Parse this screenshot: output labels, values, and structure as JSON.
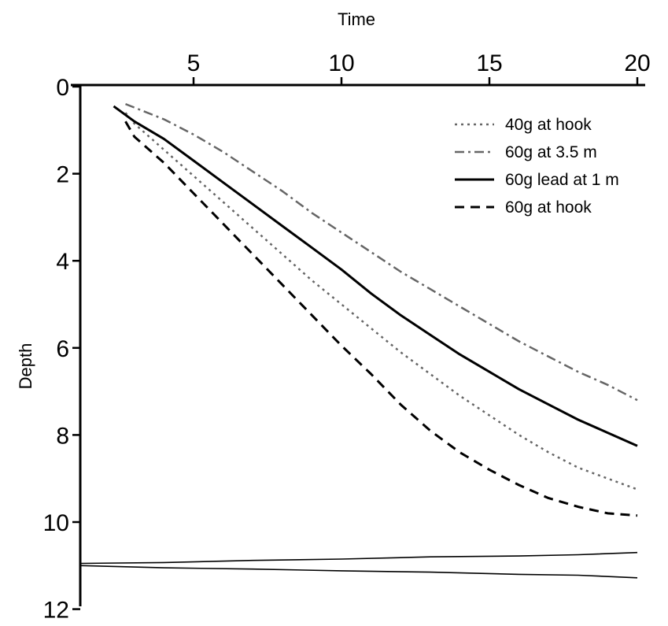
{
  "chart_data": {
    "type": "line",
    "xlabel": "Time",
    "ylabel": "Depth",
    "xlim": [
      0,
      20.3
    ],
    "ylim": [
      0,
      12
    ],
    "x_axis_position": "top",
    "y_axis_inverted": true,
    "grid": false,
    "legend_position": "top-right",
    "x_ticks": [
      {
        "value": 5,
        "label": "5"
      },
      {
        "value": 10,
        "label": "10"
      },
      {
        "value": 15,
        "label": "15"
      },
      {
        "value": 20,
        "label": "20"
      }
    ],
    "y_ticks": [
      {
        "value": 0,
        "label": "0"
      },
      {
        "value": 2,
        "label": "2"
      },
      {
        "value": 4,
        "label": "4"
      },
      {
        "value": 6,
        "label": "6"
      },
      {
        "value": 8,
        "label": "8"
      },
      {
        "value": 10,
        "label": "10"
      },
      {
        "value": 12,
        "label": "12"
      }
    ],
    "series": [
      {
        "name": "40g at hook",
        "style": "dotted",
        "color": "#666666",
        "points": [
          [
            2.7,
            0.6
          ],
          [
            3,
            0.85
          ],
          [
            4,
            1.45
          ],
          [
            5,
            2.05
          ],
          [
            6,
            2.65
          ],
          [
            7,
            3.25
          ],
          [
            8,
            3.85
          ],
          [
            9,
            4.45
          ],
          [
            10,
            5.0
          ],
          [
            11,
            5.55
          ],
          [
            12,
            6.1
          ],
          [
            13,
            6.6
          ],
          [
            14,
            7.1
          ],
          [
            15,
            7.55
          ],
          [
            16,
            8.0
          ],
          [
            17,
            8.4
          ],
          [
            18,
            8.75
          ],
          [
            19,
            9.0
          ],
          [
            20,
            9.25
          ]
        ]
      },
      {
        "name": "60g at 3.5 m",
        "style": "dashdot",
        "color": "#666666",
        "points": [
          [
            2.7,
            0.4
          ],
          [
            4,
            0.75
          ],
          [
            5,
            1.1
          ],
          [
            6,
            1.5
          ],
          [
            7,
            1.95
          ],
          [
            8,
            2.4
          ],
          [
            9,
            2.9
          ],
          [
            10,
            3.35
          ],
          [
            11,
            3.8
          ],
          [
            12,
            4.25
          ],
          [
            13,
            4.65
          ],
          [
            14,
            5.05
          ],
          [
            15,
            5.45
          ],
          [
            16,
            5.85
          ],
          [
            17,
            6.2
          ],
          [
            18,
            6.55
          ],
          [
            19,
            6.85
          ],
          [
            20,
            7.2
          ]
        ]
      },
      {
        "name": "60g lead at 1 m",
        "style": "solid",
        "color": "#000000",
        "points": [
          [
            2.3,
            0.45
          ],
          [
            3,
            0.8
          ],
          [
            4,
            1.2
          ],
          [
            5,
            1.7
          ],
          [
            6,
            2.2
          ],
          [
            7,
            2.7
          ],
          [
            8,
            3.2
          ],
          [
            9,
            3.7
          ],
          [
            10,
            4.2
          ],
          [
            11,
            4.75
          ],
          [
            12,
            5.25
          ],
          [
            13,
            5.7
          ],
          [
            14,
            6.15
          ],
          [
            15,
            6.55
          ],
          [
            16,
            6.95
          ],
          [
            17,
            7.3
          ],
          [
            18,
            7.65
          ],
          [
            19,
            7.95
          ],
          [
            20,
            8.25
          ]
        ]
      },
      {
        "name": "60g at hook",
        "style": "dashed",
        "color": "#000000",
        "points": [
          [
            2.7,
            0.8
          ],
          [
            3,
            1.15
          ],
          [
            4,
            1.75
          ],
          [
            5,
            2.45
          ],
          [
            6,
            3.15
          ],
          [
            7,
            3.85
          ],
          [
            8,
            4.55
          ],
          [
            9,
            5.25
          ],
          [
            10,
            5.95
          ],
          [
            11,
            6.6
          ],
          [
            12,
            7.3
          ],
          [
            13,
            7.9
          ],
          [
            14,
            8.4
          ],
          [
            15,
            8.8
          ],
          [
            16,
            9.15
          ],
          [
            17,
            9.45
          ],
          [
            18,
            9.65
          ],
          [
            19,
            9.8
          ],
          [
            20,
            9.85
          ]
        ]
      },
      {
        "name": "",
        "style": "thin-solid",
        "color": "#000000",
        "points": [
          [
            1.2,
            10.95
          ],
          [
            4,
            10.93
          ],
          [
            7,
            10.88
          ],
          [
            10,
            10.85
          ],
          [
            13,
            10.8
          ],
          [
            16,
            10.78
          ],
          [
            18,
            10.75
          ],
          [
            20,
            10.7
          ]
        ]
      },
      {
        "name": "",
        "style": "thin-solid",
        "color": "#000000",
        "points": [
          [
            1.2,
            11.0
          ],
          [
            4,
            11.05
          ],
          [
            7,
            11.08
          ],
          [
            10,
            11.12
          ],
          [
            13,
            11.15
          ],
          [
            16,
            11.2
          ],
          [
            18,
            11.22
          ],
          [
            20,
            11.28
          ]
        ]
      }
    ]
  }
}
